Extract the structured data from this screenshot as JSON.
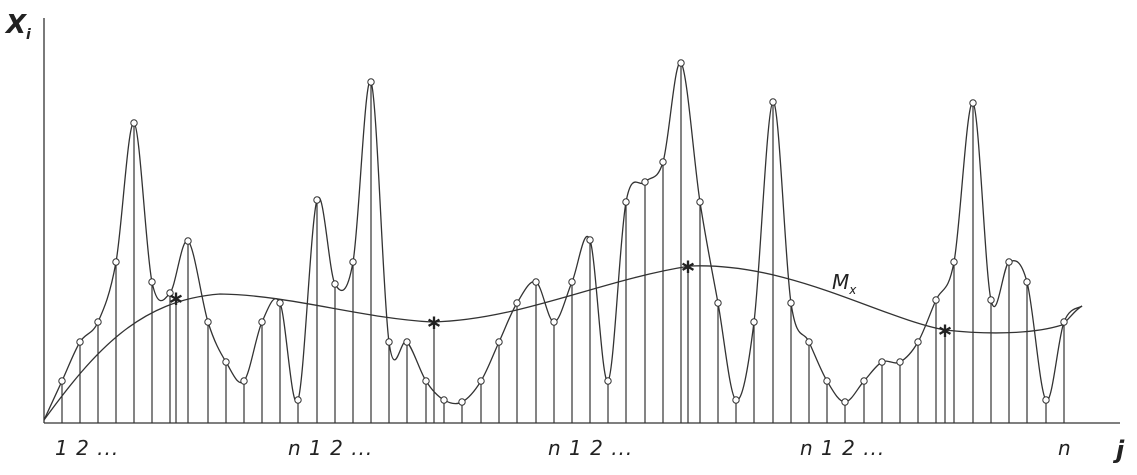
{
  "axes": {
    "y_label": "X",
    "y_label_subscript": "i",
    "x_label": "j"
  },
  "curve_label": {
    "main": "M",
    "subscript": "x"
  },
  "x_ticks": [
    "1 2 ...",
    "n 1 2 ...",
    "n 1 2 ...",
    "n 1 2 ...",
    "n"
  ],
  "colors": {
    "line": "#333333",
    "background": "#ffffff"
  }
}
